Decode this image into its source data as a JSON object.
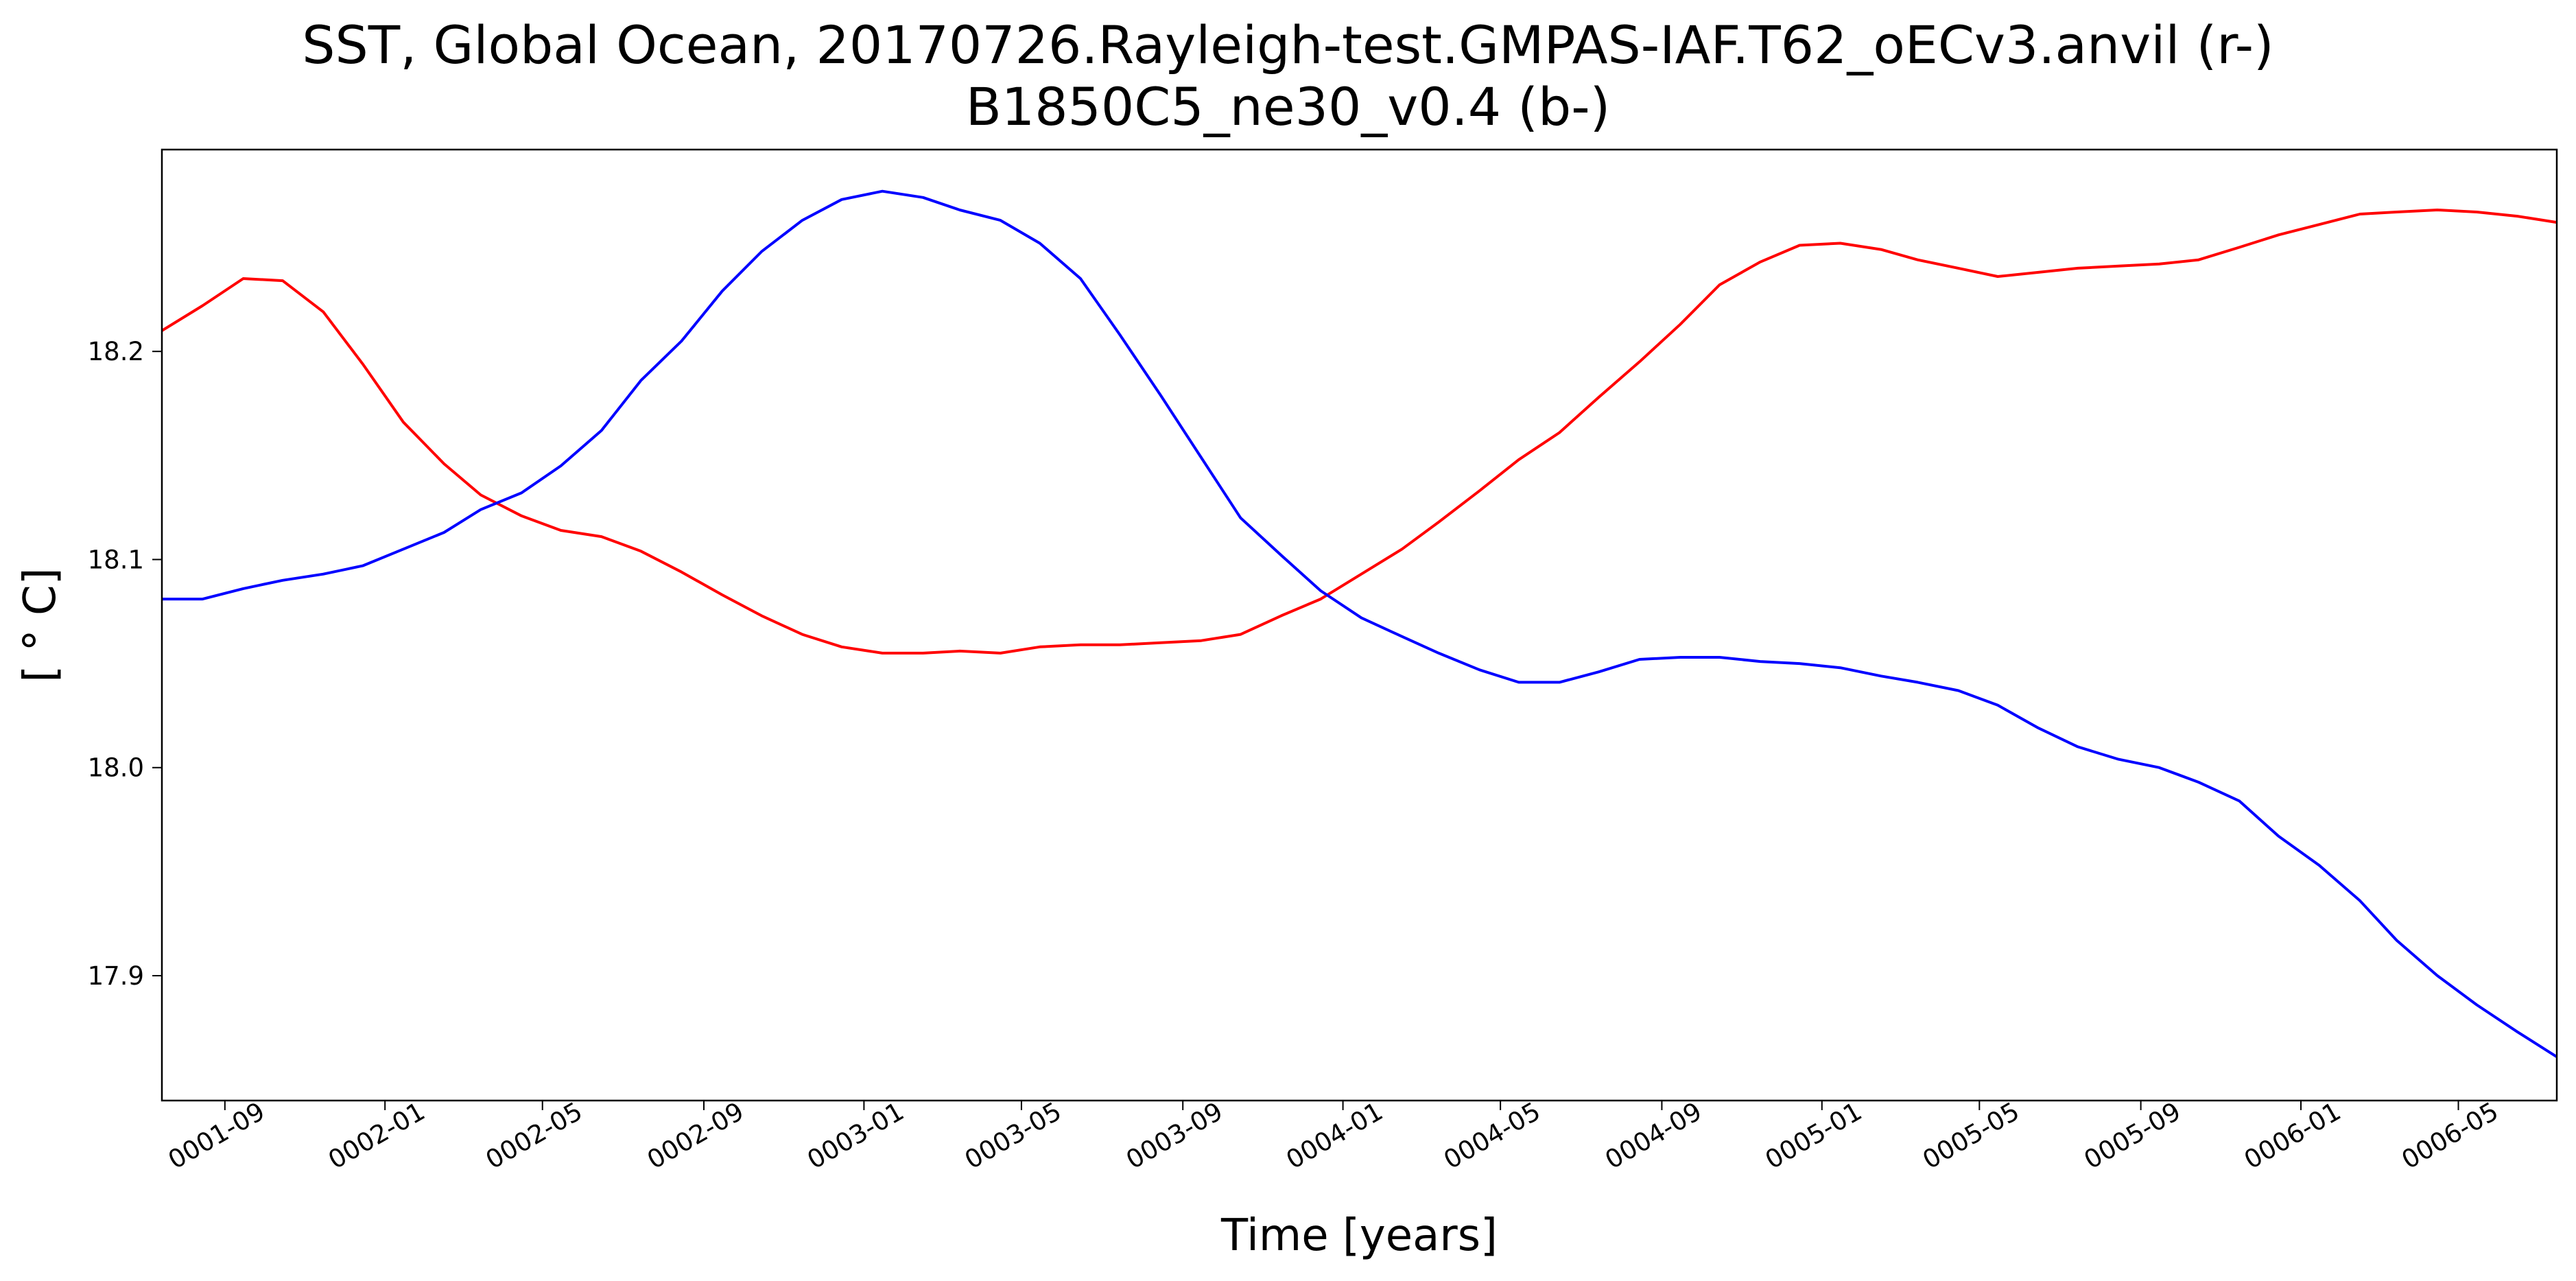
{
  "chart_data": {
    "type": "line",
    "title": "SST, Global Ocean, 20170726.Rayleigh-test.GMPAS-IAF.T62_oECv3.anvil (r-)",
    "subtitle": "B1850C5_ne30_v0.4 (b-)",
    "xlabel": "Time [years]",
    "ylabel": "[ ° C]",
    "grid": false,
    "xlim": [
      "0001-07-15",
      "0006-07-15"
    ],
    "ylim": [
      17.84,
      18.297
    ],
    "x_ticks": [
      "0001-09",
      "0002-01",
      "0002-05",
      "0002-09",
      "0003-01",
      "0003-05",
      "0003-09",
      "0004-01",
      "0004-05",
      "0004-09",
      "0005-01",
      "0005-05",
      "0005-09",
      "0006-01",
      "0006-05"
    ],
    "y_ticks": [
      "17.9",
      "18.0",
      "18.1",
      "18.2"
    ],
    "x": [
      "0001-07-15",
      "0001-08-15",
      "0001-09-15",
      "0001-10-15",
      "0001-11-15",
      "0001-12-15",
      "0002-01-15",
      "0002-02-15",
      "0002-03-15",
      "0002-04-15",
      "0002-05-15",
      "0002-06-15",
      "0002-07-15",
      "0002-08-15",
      "0002-09-15",
      "0002-10-15",
      "0002-11-15",
      "0002-12-15",
      "0003-01-15",
      "0003-02-15",
      "0003-03-15",
      "0003-04-15",
      "0003-05-15",
      "0003-06-15",
      "0003-07-15",
      "0003-08-15",
      "0003-09-15",
      "0003-10-15",
      "0003-11-15",
      "0003-12-15",
      "0004-01-15",
      "0004-02-15",
      "0004-03-15",
      "0004-04-15",
      "0004-05-15",
      "0004-06-15",
      "0004-07-15",
      "0004-08-15",
      "0004-09-15",
      "0004-10-15",
      "0004-11-15",
      "0004-12-15",
      "0005-01-15",
      "0005-02-15",
      "0005-03-15",
      "0005-04-15",
      "0005-05-15",
      "0005-06-15",
      "0005-07-15",
      "0005-08-15",
      "0005-09-15",
      "0005-10-15",
      "0005-11-15",
      "0005-12-15",
      "0006-01-15",
      "0006-02-15",
      "0006-03-15",
      "0006-04-15",
      "0006-05-15",
      "0006-06-15",
      "0006-07-15"
    ],
    "series": [
      {
        "color": "#ff0000",
        "values": [
          18.21,
          18.222,
          18.235,
          18.234,
          18.219,
          18.194,
          18.166,
          18.146,
          18.131,
          18.121,
          18.114,
          18.111,
          18.104,
          18.094,
          18.083,
          18.073,
          18.064,
          18.058,
          18.055,
          18.055,
          18.056,
          18.055,
          18.058,
          18.059,
          18.059,
          18.06,
          18.061,
          18.064,
          18.073,
          18.081,
          18.093,
          18.105,
          18.118,
          18.133,
          18.148,
          18.161,
          18.178,
          18.195,
          18.213,
          18.232,
          18.243,
          18.251,
          18.252,
          18.249,
          18.244,
          18.24,
          18.236,
          18.238,
          18.24,
          18.241,
          18.242,
          18.244,
          18.25,
          18.256,
          18.261,
          18.266,
          18.267,
          18.268,
          18.267,
          18.265,
          18.262
        ]
      },
      {
        "color": "#0000ff",
        "values": [
          18.081,
          18.081,
          18.086,
          18.09,
          18.093,
          18.097,
          18.105,
          18.113,
          18.124,
          18.132,
          18.145,
          18.162,
          18.186,
          18.205,
          18.229,
          18.248,
          18.263,
          18.273,
          18.277,
          18.274,
          18.268,
          18.263,
          18.252,
          18.235,
          18.208,
          18.179,
          18.149,
          18.12,
          18.102,
          18.085,
          18.072,
          18.063,
          18.055,
          18.047,
          18.041,
          18.041,
          18.046,
          18.052,
          18.053,
          18.053,
          18.051,
          18.05,
          18.048,
          18.044,
          18.041,
          18.037,
          18.03,
          18.019,
          18.01,
          18.004,
          18.0,
          17.993,
          17.984,
          17.967,
          17.953,
          17.936,
          17.917,
          17.9,
          17.886,
          17.873,
          17.861
        ]
      }
    ]
  }
}
